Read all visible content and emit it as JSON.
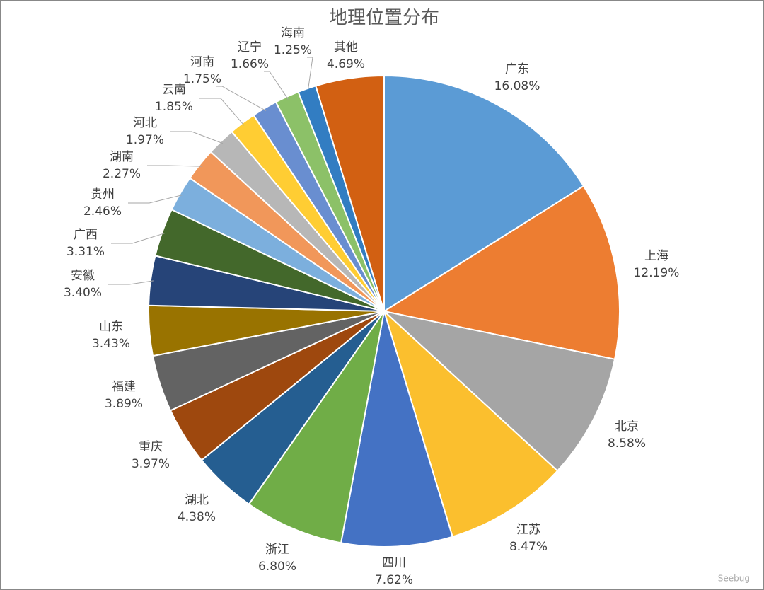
{
  "chart_data": {
    "type": "pie",
    "title": "地理位置分布",
    "categories": [
      "广东",
      "上海",
      "北京",
      "江苏",
      "四川",
      "浙江",
      "湖北",
      "重庆",
      "福建",
      "山东",
      "安徽",
      "广西",
      "贵州",
      "湖南",
      "河北",
      "云南",
      "河南",
      "辽宁",
      "海南",
      "其他"
    ],
    "values": [
      16.08,
      12.19,
      8.58,
      8.47,
      7.62,
      6.8,
      4.38,
      3.97,
      3.89,
      3.43,
      3.4,
      3.31,
      2.46,
      2.27,
      1.97,
      1.85,
      1.75,
      1.66,
      1.25,
      4.69
    ],
    "value_labels": [
      "16.08%",
      "12.19%",
      "8.58%",
      "8.47%",
      "7.62%",
      "6.80%",
      "4.38%",
      "3.97%",
      "3.89%",
      "3.43%",
      "3.40%",
      "3.31%",
      "2.46%",
      "2.27%",
      "1.97%",
      "1.85%",
      "1.75%",
      "1.66%",
      "1.25%",
      "4.69%"
    ],
    "colors": [
      "#5b9bd5",
      "#ed7d31",
      "#a5a5a5",
      "#fbbf2e",
      "#4472c4",
      "#70ad47",
      "#255e91",
      "#9e480e",
      "#636363",
      "#997300",
      "#264478",
      "#43682b",
      "#7cafdd",
      "#f1975a",
      "#b7b7b7",
      "#ffcd33",
      "#698ed0",
      "#8cc168",
      "#327dc2",
      "#d26012"
    ]
  },
  "watermark": "Seebug"
}
